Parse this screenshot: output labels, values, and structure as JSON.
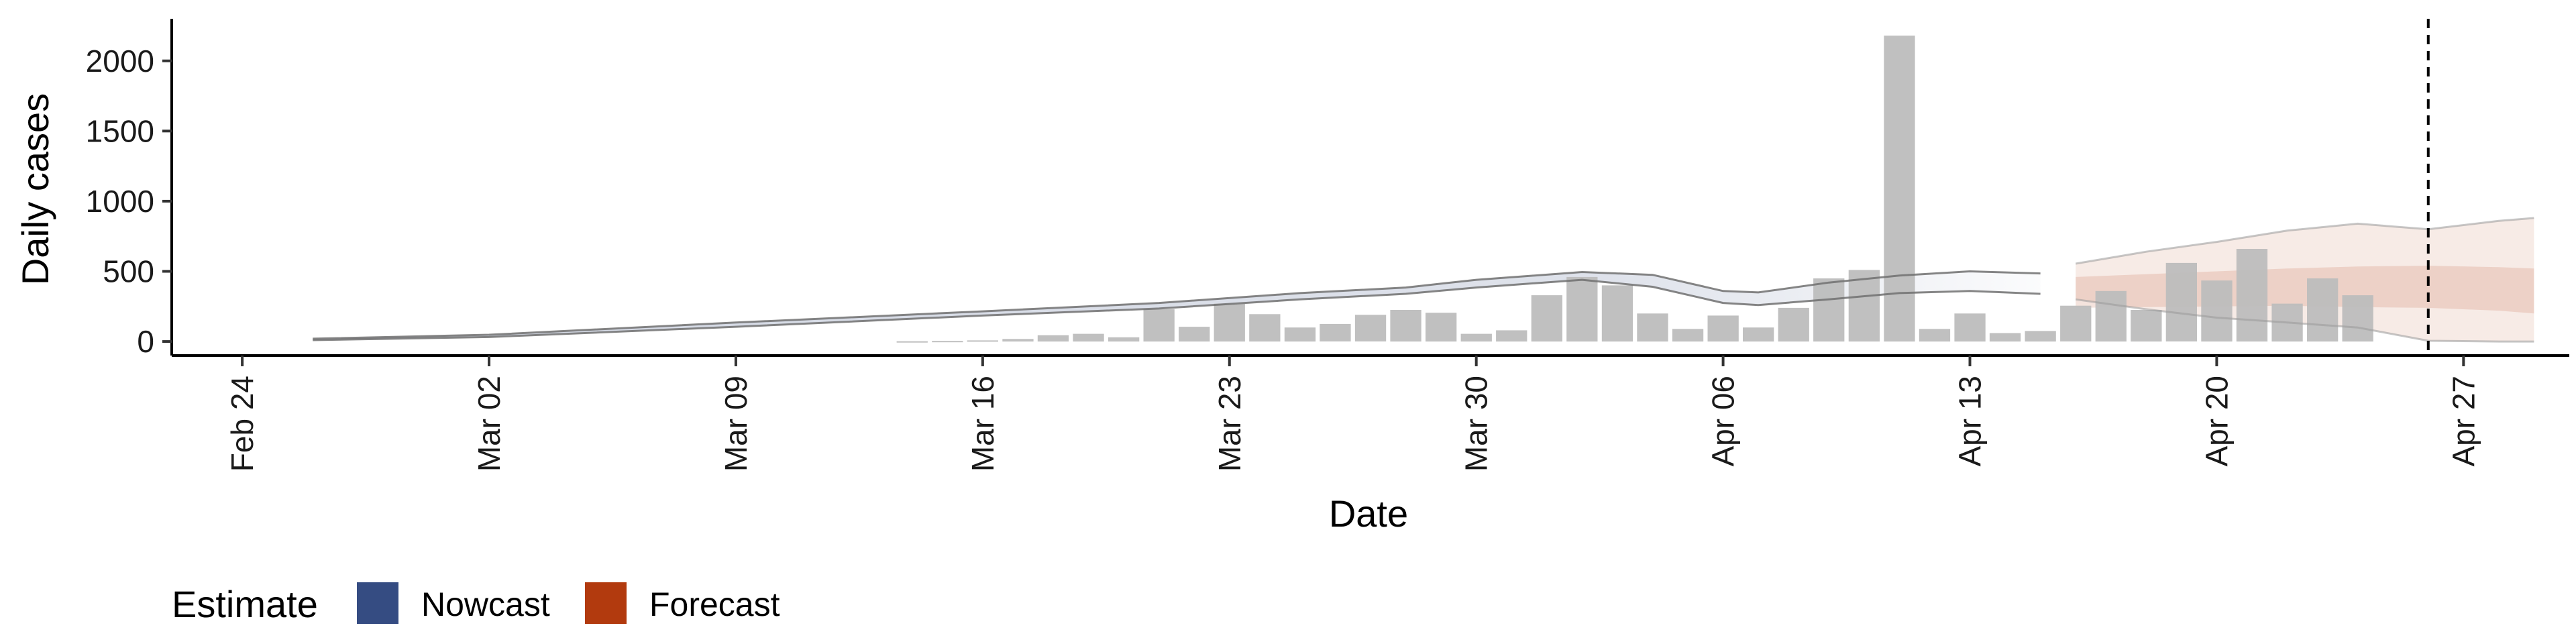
{
  "chart_data": {
    "type": "bar",
    "xlabel": "Date",
    "ylabel": "Daily cases",
    "x_ticks": [
      "Feb 24",
      "Mar 02",
      "Mar 09",
      "Mar 16",
      "Mar 23",
      "Mar 30",
      "Apr 06",
      "Apr 13",
      "Apr 20",
      "Apr 27"
    ],
    "y_ticks": [
      0,
      500,
      1000,
      1500,
      2000
    ],
    "ylim": [
      -100,
      2300
    ],
    "xlim": [
      "2020-02-22",
      "2020-04-30"
    ],
    "grid": false,
    "legend_position": "bottom-left",
    "legend": {
      "title": "Estimate",
      "items": [
        {
          "label": "Nowcast",
          "color": "#354c82"
        },
        {
          "label": "Forecast",
          "color": "#b23a0e"
        }
      ]
    },
    "vline_date": "2020-04-26",
    "bars": {
      "color": "#bdbdbd",
      "dates": [
        "2020-03-14",
        "2020-03-15",
        "2020-03-16",
        "2020-03-17",
        "2020-03-18",
        "2020-03-19",
        "2020-03-20",
        "2020-03-21",
        "2020-03-22",
        "2020-03-23",
        "2020-03-24",
        "2020-03-25",
        "2020-03-26",
        "2020-03-27",
        "2020-03-28",
        "2020-03-29",
        "2020-03-30",
        "2020-03-31",
        "2020-04-01",
        "2020-04-02",
        "2020-04-03",
        "2020-04-04",
        "2020-04-05",
        "2020-04-06",
        "2020-04-07",
        "2020-04-08",
        "2020-04-09",
        "2020-04-10",
        "2020-04-11",
        "2020-04-12",
        "2020-04-13",
        "2020-04-14",
        "2020-04-15",
        "2020-04-16",
        "2020-04-17",
        "2020-04-18",
        "2020-04-19",
        "2020-04-20",
        "2020-04-21",
        "2020-04-22",
        "2020-04-23",
        "2020-04-24"
      ],
      "values": [
        2,
        4,
        8,
        18,
        45,
        55,
        30,
        230,
        105,
        270,
        195,
        100,
        125,
        190,
        225,
        205,
        55,
        80,
        330,
        460,
        400,
        200,
        90,
        185,
        100,
        240,
        450,
        510,
        2180,
        90,
        200,
        60,
        75,
        255,
        360,
        225,
        560,
        435,
        660,
        270,
        450,
        330
      ]
    },
    "nowcast": {
      "color": "#354c82",
      "dates": [
        "2020-02-26",
        "2020-03-02",
        "2020-03-09",
        "2020-03-16",
        "2020-03-21",
        "2020-03-25",
        "2020-03-28",
        "2020-03-30",
        "2020-04-02",
        "2020-04-04",
        "2020-04-06",
        "2020-04-07",
        "2020-04-09",
        "2020-04-11",
        "2020-04-13",
        "2020-04-15"
      ],
      "median": [
        15,
        40,
        120,
        200,
        255,
        320,
        360,
        410,
        480,
        440,
        325,
        315,
        370,
        420,
        440,
        420
      ],
      "lower": [
        10,
        32,
        105,
        185,
        235,
        300,
        340,
        385,
        440,
        390,
        275,
        260,
        300,
        345,
        360,
        340
      ],
      "upper": [
        20,
        48,
        135,
        215,
        275,
        345,
        385,
        440,
        495,
        475,
        360,
        350,
        420,
        470,
        500,
        485
      ]
    },
    "forecast": {
      "color": "#b23a0e",
      "dates": [
        "2020-04-16",
        "2020-04-18",
        "2020-04-20",
        "2020-04-22",
        "2020-04-24",
        "2020-04-26",
        "2020-04-28",
        "2020-04-29"
      ],
      "median": [
        340,
        355,
        360,
        365,
        360,
        365,
        355,
        350
      ],
      "lower50": [
        240,
        245,
        250,
        255,
        245,
        240,
        220,
        200
      ],
      "upper50": [
        460,
        480,
        500,
        520,
        535,
        540,
        530,
        520
      ],
      "lower90": [
        300,
        230,
        170,
        135,
        100,
        5,
        0,
        0
      ],
      "upper90": [
        555,
        640,
        710,
        790,
        840,
        800,
        860,
        880
      ]
    }
  }
}
